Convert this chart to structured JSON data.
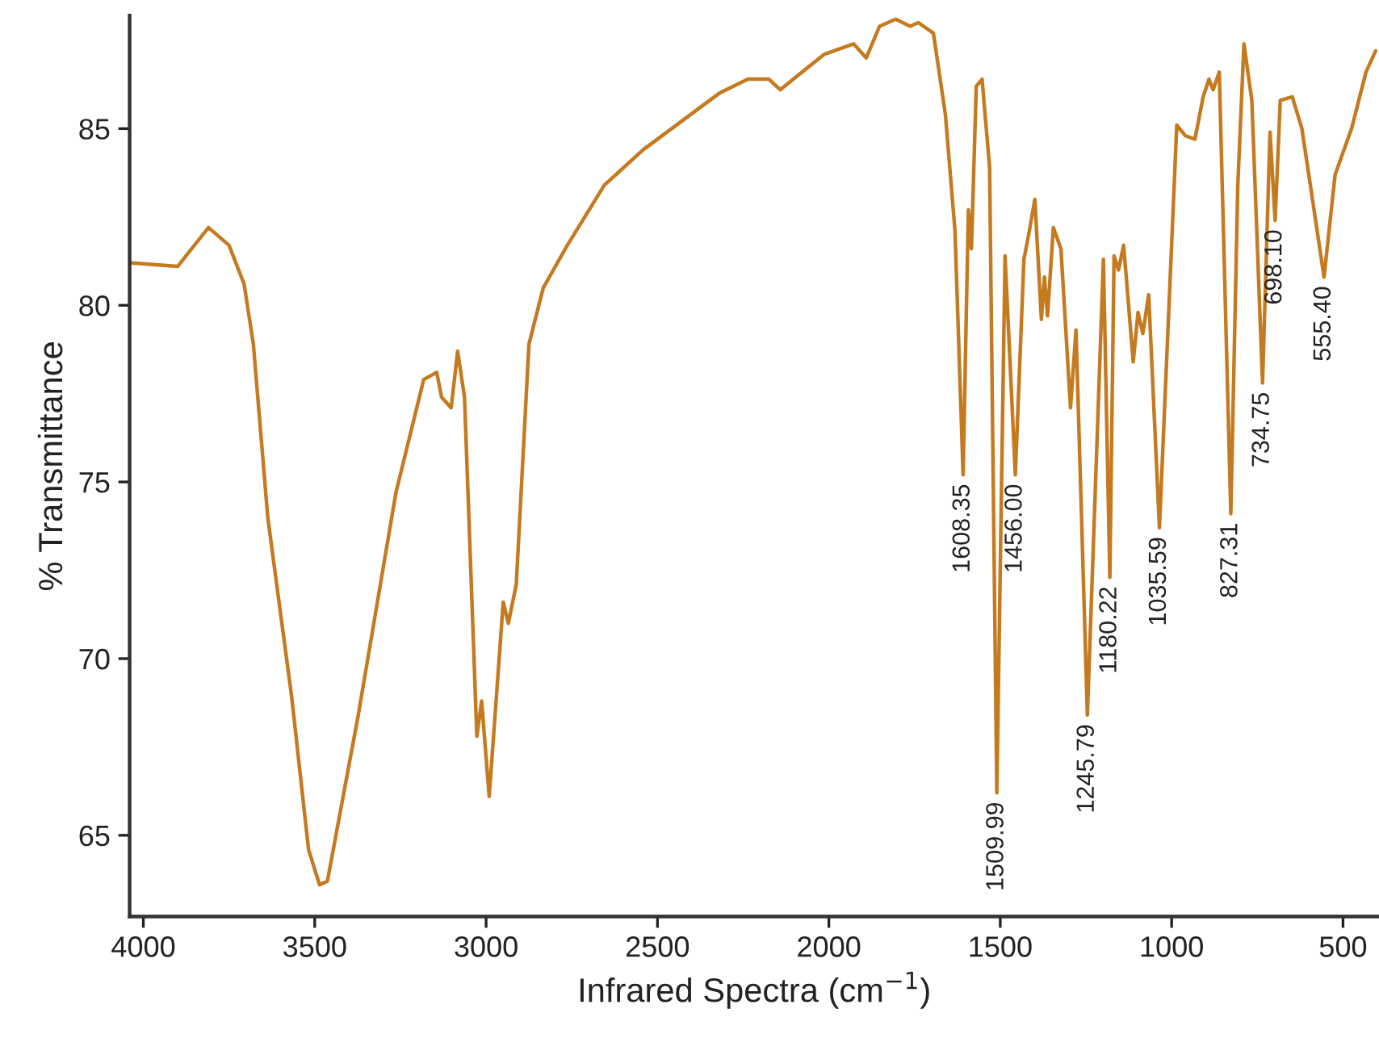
{
  "chart_data": {
    "type": "line",
    "xlabel": "Infrared Spectra (cm$^{−1}$)",
    "ylabel": "% Transmittance",
    "xlim": [
      4040,
      395
    ],
    "xticks": [
      4000,
      3500,
      3000,
      2500,
      2000,
      1500,
      1000,
      500
    ],
    "ylim": [
      62.7,
      88.2
    ],
    "yticks": [
      65,
      70,
      75,
      80,
      85
    ],
    "grid": false,
    "legend": false,
    "series": [
      {
        "color": "#c57a1f",
        "x": [
          4035,
          3900,
          3810,
          3750,
          3706,
          3679,
          3637,
          3567,
          3518,
          3486,
          3463,
          3373,
          3263,
          3182,
          3144,
          3130,
          3102,
          3083,
          3063,
          3027,
          3013,
          2991,
          2950,
          2935,
          2912,
          2875,
          2833,
          2763,
          2655,
          2542,
          2320,
          2236,
          2175,
          2142,
          2078,
          2014,
          1928,
          1891,
          1852,
          1805,
          1763,
          1739,
          1695,
          1660,
          1632,
          1608.35,
          1593,
          1584,
          1570,
          1553,
          1531,
          1509.99,
          1486,
          1456.0,
          1431,
          1417,
          1399,
          1380,
          1371,
          1362,
          1345,
          1323,
          1295,
          1279,
          1245.79,
          1199,
          1180.22,
          1168,
          1155,
          1140,
          1112,
          1098,
          1084,
          1067,
          1035.59,
          985,
          960,
          932,
          908,
          891,
          879,
          861,
          827.31,
          807,
          789,
          766,
          734.75,
          713,
          698.1,
          683,
          648,
          620,
          586,
          555.4,
          523,
          475,
          433,
          405
        ],
        "values": [
          81.2,
          81.1,
          82.2,
          81.7,
          80.6,
          78.9,
          74.0,
          68.9,
          64.6,
          63.6,
          63.7,
          68.4,
          74.7,
          77.9,
          78.1,
          77.4,
          77.1,
          78.7,
          77.4,
          67.8,
          68.8,
          66.1,
          71.6,
          71.0,
          72.1,
          78.9,
          80.5,
          81.7,
          83.4,
          84.4,
          86.0,
          86.4,
          86.4,
          86.1,
          86.6,
          87.1,
          87.4,
          87.0,
          87.9,
          88.1,
          87.9,
          88.0,
          87.7,
          85.4,
          82.1,
          75.2,
          82.7,
          81.6,
          86.2,
          86.4,
          83.9,
          66.2,
          81.4,
          75.2,
          81.3,
          82.0,
          83.0,
          79.6,
          80.8,
          79.7,
          82.2,
          81.6,
          77.1,
          79.3,
          68.4,
          81.3,
          72.3,
          81.4,
          81.0,
          81.7,
          78.4,
          79.8,
          79.2,
          80.3,
          73.7,
          85.1,
          84.8,
          84.7,
          85.9,
          86.4,
          86.1,
          86.6,
          74.1,
          83.4,
          87.4,
          85.8,
          77.8,
          84.9,
          82.4,
          85.8,
          85.9,
          85.0,
          82.8,
          80.8,
          83.7,
          85.0,
          86.6,
          87.2
        ]
      }
    ],
    "annotations": [
      {
        "text": "1608.35",
        "x": 1608.35,
        "y": 75.2
      },
      {
        "text": "1509.99",
        "x": 1509.99,
        "y": 66.2
      },
      {
        "text": "1456.00",
        "x": 1456.0,
        "y": 75.2
      },
      {
        "text": "1245.79",
        "x": 1245.79,
        "y": 68.4
      },
      {
        "text": "1180.22",
        "x": 1180.22,
        "y": 72.3
      },
      {
        "text": "1035.59",
        "x": 1035.59,
        "y": 73.7
      },
      {
        "text": "827.31",
        "x": 827.31,
        "y": 74.1
      },
      {
        "text": "734.75",
        "x": 734.75,
        "y": 77.8
      },
      {
        "text": "698.10",
        "x": 698.1,
        "y": 82.4
      },
      {
        "text": "555.40",
        "x": 555.4,
        "y": 80.8
      }
    ]
  }
}
